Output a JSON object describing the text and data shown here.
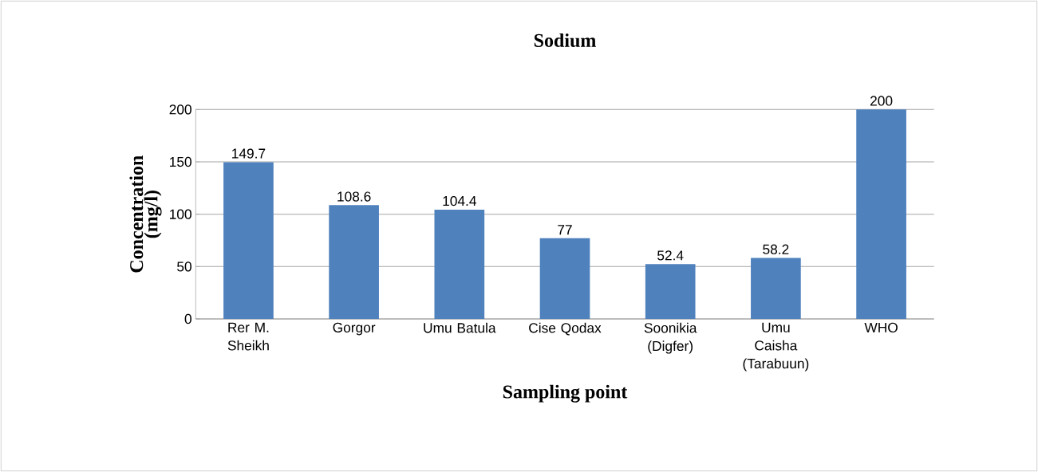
{
  "chart_data": {
    "type": "bar",
    "title": "Sodium",
    "xlabel": "Sampling point",
    "ylabel": "Concentration (mg/l)",
    "categories": [
      "Rer M. Sheikh",
      "Gorgor",
      "Umu Batula",
      "Cise Qodax",
      "Soonikia (Digfer)",
      "Umu Caisha (Tarabuun)",
      "WHO"
    ],
    "values": [
      149.7,
      108.6,
      104.4,
      77,
      52.4,
      58.2,
      200
    ],
    "color": "#4f81bd",
    "ylim": [
      0,
      200
    ],
    "yticks": [
      0,
      50,
      100,
      150,
      200
    ],
    "grid": "y",
    "data_labels": true
  }
}
